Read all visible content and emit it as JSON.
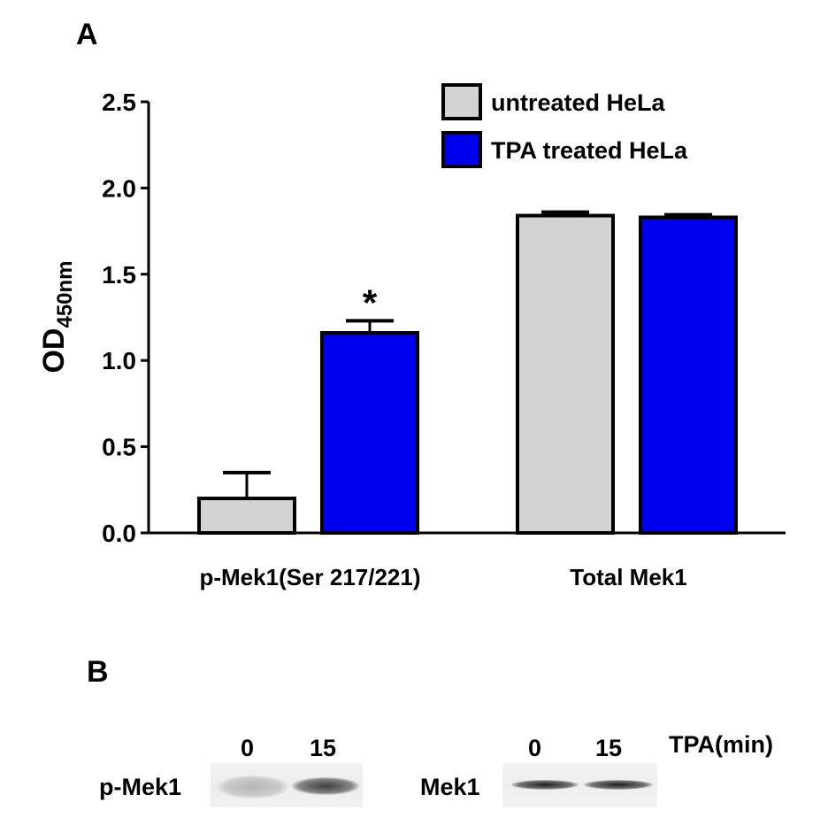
{
  "panel_a_label": "A",
  "panel_b_label": "B",
  "chart_data": {
    "type": "bar",
    "categories": [
      "p-Mek1(Ser 217/221)",
      "Total Mek1"
    ],
    "series": [
      {
        "name": "untreated HeLa",
        "color": "#d3d3d3",
        "values": [
          0.2,
          1.84
        ],
        "errors": [
          0.15,
          0.02
        ]
      },
      {
        "name": "TPA treated HeLa",
        "color": "#0000ee",
        "values": [
          1.16,
          1.83
        ],
        "errors": [
          0.07,
          0.015
        ]
      }
    ],
    "ylabel": "OD",
    "ylabel_sub": "450nm",
    "ylim": [
      0,
      2.5
    ],
    "yticks": [
      "0.0",
      "0.5",
      "1.0",
      "1.5",
      "2.0",
      "2.5"
    ],
    "annotations": [
      {
        "text": "*",
        "category": 0,
        "series": 1
      }
    ],
    "legend_position": "top-right",
    "grid": false
  },
  "blot": {
    "left": {
      "row_label": "p-Mek1",
      "lane_labels": [
        "0",
        "15"
      ],
      "band_intensity": [
        0.25,
        0.8
      ]
    },
    "right": {
      "row_label": "Mek1",
      "lane_labels": [
        "0",
        "15"
      ],
      "band_intensity": [
        0.95,
        0.95
      ],
      "condition_label": "TPA(min)"
    }
  }
}
